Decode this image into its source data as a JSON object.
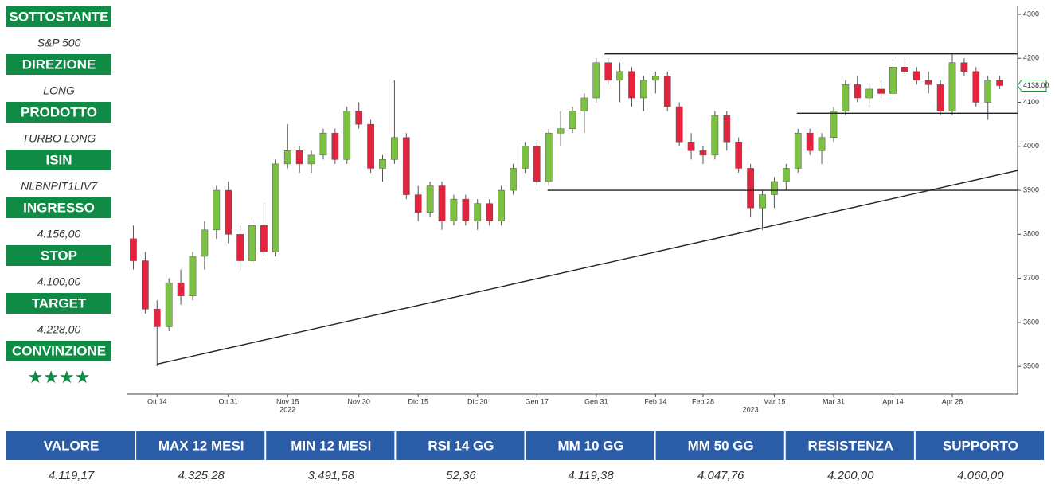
{
  "sidebar": [
    {
      "label": "SOTTOSTANTE",
      "value": "S&P 500"
    },
    {
      "label": "DIREZIONE",
      "value": "LONG"
    },
    {
      "label": "PRODOTTO",
      "value": "TURBO LONG"
    },
    {
      "label": "ISIN",
      "value": "NLBNPIT1LIV7"
    },
    {
      "label": "INGRESSO",
      "value": "4.156,00"
    },
    {
      "label": "STOP",
      "value": "4.100,00"
    },
    {
      "label": "TARGET",
      "value": "4.228,00"
    },
    {
      "label": "CONVINZIONE",
      "value": "★★★★"
    }
  ],
  "chart_data": {
    "type": "candlestick",
    "open": [
      3790,
      3740,
      3630,
      3590,
      3690,
      3660,
      3750,
      3810,
      3900,
      3800,
      3740,
      3820,
      3760,
      3960,
      3990,
      3960,
      3980,
      4030,
      3970,
      4080,
      4050,
      3950,
      3970,
      4020,
      3890,
      3850,
      3910,
      3830,
      3880,
      3830,
      3870,
      3830,
      3900,
      3950,
      4000,
      3920,
      4030,
      4040,
      4080,
      4110,
      4190,
      4150,
      4170,
      4110,
      4150,
      4160,
      4090,
      4010,
      3990,
      3980,
      4070,
      4010,
      3950,
      3860,
      3890,
      3920,
      3950,
      4030,
      3990,
      4020,
      4080,
      4140,
      4110,
      4130,
      4120,
      4180,
      4170,
      4150,
      4140,
      4080,
      4190,
      4170,
      4100,
      4150
    ],
    "high": [
      3820,
      3760,
      3650,
      3700,
      3720,
      3760,
      3830,
      3910,
      3920,
      3820,
      3830,
      3870,
      3970,
      4050,
      4000,
      3990,
      4040,
      4040,
      4090,
      4100,
      4060,
      3980,
      4150,
      4030,
      3910,
      3920,
      3920,
      3890,
      3890,
      3880,
      3880,
      3910,
      3960,
      4010,
      4010,
      4040,
      4080,
      4090,
      4120,
      4200,
      4200,
      4190,
      4180,
      4160,
      4170,
      4170,
      4100,
      4030,
      4000,
      4080,
      4080,
      4020,
      3960,
      3900,
      3930,
      3960,
      4040,
      4040,
      4030,
      4090,
      4150,
      4160,
      4140,
      4150,
      4190,
      4200,
      4180,
      4170,
      4150,
      4210,
      4200,
      4180,
      4160,
      4160
    ],
    "low": [
      3720,
      3620,
      3500,
      3580,
      3640,
      3650,
      3720,
      3790,
      3780,
      3720,
      3730,
      3750,
      3750,
      3950,
      3940,
      3940,
      3970,
      3960,
      3960,
      4040,
      3940,
      3920,
      3960,
      3880,
      3830,
      3840,
      3810,
      3820,
      3820,
      3810,
      3820,
      3820,
      3890,
      3940,
      3910,
      3910,
      4000,
      4030,
      4030,
      4100,
      4140,
      4100,
      4090,
      4080,
      4120,
      4080,
      4000,
      3970,
      3960,
      3970,
      3990,
      3940,
      3840,
      3810,
      3860,
      3900,
      3940,
      3980,
      3960,
      4010,
      4070,
      4100,
      4090,
      4110,
      4110,
      4160,
      4140,
      4120,
      4070,
      4070,
      4160,
      4090,
      4060,
      4130
    ],
    "close": [
      3740,
      3630,
      3590,
      3690,
      3660,
      3750,
      3810,
      3900,
      3800,
      3740,
      3820,
      3760,
      3960,
      3990,
      3960,
      3980,
      4030,
      3970,
      4080,
      4050,
      3950,
      3970,
      4020,
      3890,
      3850,
      3910,
      3830,
      3880,
      3830,
      3870,
      3830,
      3900,
      3950,
      4000,
      3920,
      4030,
      4040,
      4080,
      4110,
      4190,
      4150,
      4170,
      4110,
      4150,
      4160,
      4090,
      4010,
      3990,
      3980,
      4070,
      4010,
      3950,
      3860,
      3890,
      3920,
      3950,
      4030,
      3990,
      4020,
      4080,
      4140,
      4110,
      4130,
      4120,
      4180,
      4170,
      4150,
      4140,
      4080,
      4190,
      4170,
      4100,
      4150,
      4138
    ],
    "up_color": "#7cc242",
    "down_color": "#e4233f",
    "xlim": [
      -0.5,
      74.5
    ],
    "xticks": [
      {
        "value": 2,
        "label": "Ott 14"
      },
      {
        "value": 8,
        "label": "Ott 31"
      },
      {
        "value": 13,
        "label": "Nov 15"
      },
      {
        "value": 19,
        "label": "Nov 30"
      },
      {
        "value": 24,
        "label": "Dic 15"
      },
      {
        "value": 29,
        "label": "Dic 30"
      },
      {
        "value": 34,
        "label": "Gen 17"
      },
      {
        "value": 39,
        "label": "Gen 31"
      },
      {
        "value": 44,
        "label": "Feb 14"
      },
      {
        "value": 48,
        "label": "Feb 28"
      },
      {
        "value": 54,
        "label": "Mar 15"
      },
      {
        "value": 59,
        "label": "Mar 31"
      },
      {
        "value": 64,
        "label": "Apr 14"
      },
      {
        "value": 69,
        "label": "Apr 28"
      }
    ],
    "years": [
      {
        "value": 13,
        "label": "2022"
      },
      {
        "value": 52,
        "label": "2023"
      }
    ],
    "ylim": [
      3437,
      4318
    ],
    "yticks": [
      3500,
      3600,
      3700,
      3800,
      3900,
      4000,
      4100,
      4200,
      4300
    ],
    "last_price": {
      "value": 4138,
      "label": "4138,00"
    },
    "lines": [
      {
        "x": [
          39.7,
          74.5
        ],
        "y": [
          4210,
          4210
        ]
      },
      {
        "x": [
          55.9,
          74.5
        ],
        "y": [
          4075,
          4075
        ]
      },
      {
        "x": [
          34.9,
          74.5
        ],
        "y": [
          3900,
          3900
        ]
      },
      {
        "x": [
          2,
          74.5
        ],
        "y": [
          3505,
          3945
        ]
      }
    ]
  },
  "table": {
    "headers": [
      "VALORE",
      "MAX 12 MESI",
      "MIN 12 MESI",
      "RSI 14 GG",
      "MM 10 GG",
      "MM 50 GG",
      "RESISTENZA",
      "SUPPORTO"
    ],
    "values": [
      "4.119,17",
      "4.325,28",
      "3.491,58",
      "52,36",
      "4.119,38",
      "4.047,76",
      "4.200,00",
      "4.060,00"
    ]
  }
}
